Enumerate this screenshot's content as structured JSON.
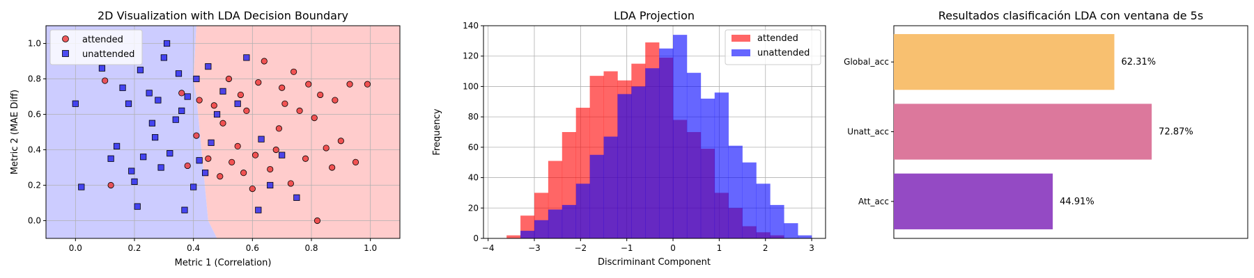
{
  "chart_data": [
    {
      "type": "scatter",
      "title": "2D Visualization with LDA Decision Boundary",
      "xlabel": "Metric 1 (Correlation)",
      "ylabel": "Metric 2 (MAE Diff)",
      "xlim": [
        -0.1,
        1.1
      ],
      "ylim": [
        -0.1,
        1.1
      ],
      "xticks": [
        0.0,
        0.2,
        0.4,
        0.6,
        0.8,
        1.0
      ],
      "yticks": [
        0.0,
        0.2,
        0.4,
        0.6,
        0.8,
        1.0
      ],
      "grid": true,
      "legend_position": "top-left",
      "boundary": [
        [
          0.41,
          1.1
        ],
        [
          0.4,
          0.8
        ],
        [
          0.41,
          0.7
        ],
        [
          0.43,
          0.35
        ],
        [
          0.45,
          0.0
        ],
        [
          0.48,
          -0.1
        ]
      ],
      "regions": {
        "left_color": "#ccccff",
        "right_color": "#ffcccc"
      },
      "series": [
        {
          "name": "attended",
          "marker": "circle",
          "color": "#ee3333",
          "points": [
            [
              0.62,
              0.78
            ],
            [
              0.71,
              0.66
            ],
            [
              0.55,
              0.42
            ],
            [
              0.83,
              0.71
            ],
            [
              0.45,
              0.35
            ],
            [
              0.9,
              0.45
            ],
            [
              0.66,
              0.29
            ],
            [
              0.52,
              0.8
            ],
            [
              0.78,
              0.35
            ],
            [
              0.36,
              0.72
            ],
            [
              0.58,
              0.62
            ],
            [
              0.74,
              0.84
            ],
            [
              0.68,
              0.4
            ],
            [
              0.49,
              0.25
            ],
            [
              0.81,
              0.58
            ],
            [
              0.93,
              0.77
            ],
            [
              0.41,
              0.48
            ],
            [
              0.6,
              0.18
            ],
            [
              0.87,
              0.3
            ],
            [
              0.73,
              0.21
            ],
            [
              0.64,
              0.9
            ],
            [
              0.56,
              0.71
            ],
            [
              0.79,
              0.77
            ],
            [
              0.47,
              0.65
            ],
            [
              0.69,
              0.52
            ],
            [
              0.85,
              0.41
            ],
            [
              0.38,
              0.31
            ],
            [
              0.53,
              0.33
            ],
            [
              0.76,
              0.62
            ],
            [
              0.61,
              0.37
            ],
            [
              0.95,
              0.33
            ],
            [
              0.99,
              0.77
            ],
            [
              0.82,
              0.0
            ],
            [
              0.12,
              0.2
            ],
            [
              0.1,
              0.79
            ],
            [
              0.42,
              0.68
            ],
            [
              0.57,
              0.27
            ],
            [
              0.7,
              0.75
            ],
            [
              0.5,
              0.55
            ],
            [
              0.88,
              0.68
            ]
          ]
        },
        {
          "name": "unattended",
          "marker": "square",
          "color": "#2222ee",
          "points": [
            [
              0.25,
              0.72
            ],
            [
              0.32,
              0.38
            ],
            [
              0.18,
              0.66
            ],
            [
              0.41,
              0.8
            ],
            [
              0.29,
              0.3
            ],
            [
              0.14,
              0.42
            ],
            [
              0.36,
              0.62
            ],
            [
              0.22,
              0.85
            ],
            [
              0.46,
              0.44
            ],
            [
              0.3,
              0.92
            ],
            [
              0.2,
              0.22
            ],
            [
              0.38,
              0.7
            ],
            [
              0.27,
              0.47
            ],
            [
              0.16,
              0.75
            ],
            [
              0.44,
              0.27
            ],
            [
              0.34,
              0.57
            ],
            [
              0.23,
              0.36
            ],
            [
              0.5,
              0.73
            ],
            [
              0.12,
              0.35
            ],
            [
              0.4,
              0.19
            ],
            [
              0.31,
              1.0
            ],
            [
              0.0,
              0.66
            ],
            [
              0.02,
              0.19
            ],
            [
              0.21,
              0.08
            ],
            [
              0.62,
              0.06
            ],
            [
              0.66,
              0.2
            ],
            [
              0.58,
              0.92
            ],
            [
              0.7,
              0.37
            ],
            [
              0.55,
              0.66
            ],
            [
              0.63,
              0.46
            ],
            [
              0.75,
              0.13
            ],
            [
              0.45,
              0.87
            ],
            [
              0.37,
              0.06
            ],
            [
              0.26,
              0.55
            ],
            [
              0.19,
              0.28
            ],
            [
              0.35,
              0.83
            ],
            [
              0.28,
              0.68
            ],
            [
              0.42,
              0.34
            ],
            [
              0.09,
              0.86
            ],
            [
              0.48,
              0.6
            ]
          ]
        }
      ]
    },
    {
      "type": "bar",
      "subtype": "histogram",
      "title": "LDA Projection",
      "xlabel": "Discriminant Component",
      "ylabel": "Frequency",
      "xlim": [
        -4.1,
        3.3
      ],
      "ylim": [
        0,
        140
      ],
      "xticks": [
        -4,
        -3,
        -2,
        -1,
        0,
        1,
        2,
        3
      ],
      "yticks": [
        0,
        20,
        40,
        60,
        80,
        100,
        120,
        140
      ],
      "grid": true,
      "legend_position": "top-right",
      "bin_edges": [
        -3.6,
        -3.3,
        -3.0,
        -2.7,
        -2.4,
        -2.1,
        -1.8,
        -1.5,
        -1.2,
        -0.9,
        -0.6,
        -0.3,
        0.0,
        0.3,
        0.6,
        0.9,
        1.2,
        1.5,
        1.8,
        2.1,
        2.4,
        2.7,
        3.0
      ],
      "series": [
        {
          "name": "attended",
          "color": "#ff0000",
          "alpha": 0.6,
          "counts": [
            2,
            15,
            30,
            51,
            70,
            86,
            107,
            110,
            104,
            115,
            129,
            119,
            78,
            70,
            59,
            30,
            20,
            8,
            4,
            2,
            0,
            0
          ]
        },
        {
          "name": "unattended",
          "color": "#0000ff",
          "alpha": 0.6,
          "counts": [
            0,
            5,
            12,
            19,
            22,
            36,
            55,
            67,
            95,
            100,
            112,
            125,
            134,
            109,
            92,
            96,
            61,
            50,
            36,
            22,
            10,
            2
          ]
        }
      ]
    },
    {
      "type": "bar",
      "orientation": "horizontal",
      "title": "Resultados clasificación LDA con ventana de 5s",
      "categories": [
        "Global_acc",
        "Unatt_acc",
        "Att_acc"
      ],
      "values": [
        62.31,
        72.87,
        44.91
      ],
      "value_labels": [
        "62.31%",
        "72.87%",
        "44.91%"
      ],
      "xlim": [
        0,
        100
      ],
      "colors": [
        "#f8c070",
        "#dc789c",
        "#944ac4"
      ],
      "grid": false
    }
  ]
}
